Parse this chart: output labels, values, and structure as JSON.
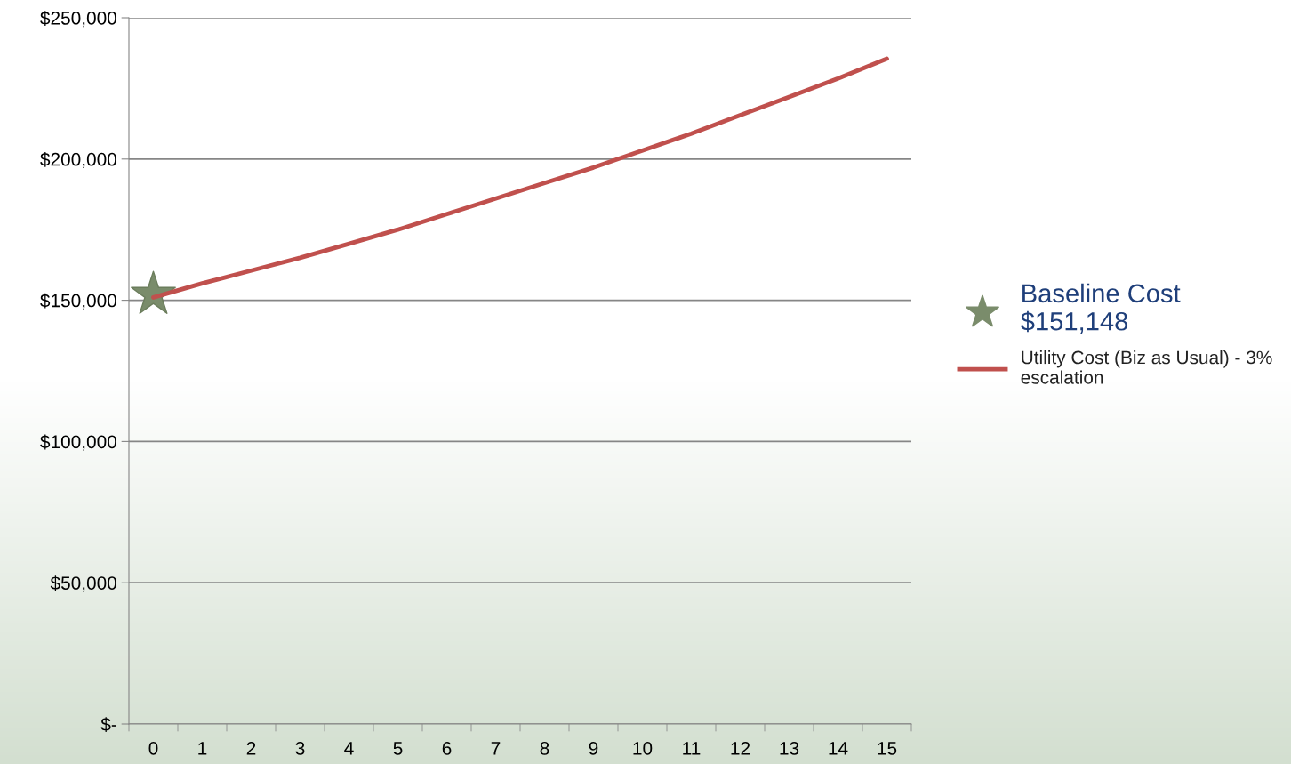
{
  "chart_data": {
    "type": "line",
    "categories": [
      "0",
      "1",
      "2",
      "3",
      "4",
      "5",
      "6",
      "7",
      "8",
      "9",
      "10",
      "11",
      "12",
      "13",
      "14",
      "15"
    ],
    "series": [
      {
        "name": "Utility Cost (Biz as Usual) - 3%\nescalation",
        "color": "#c0504d",
        "values": [
          151000,
          156000,
          160500,
          165000,
          170000,
          175000,
          180500,
          186000,
          191500,
          197000,
          203000,
          209000,
          215500,
          222000,
          228500,
          235500
        ]
      },
      {
        "name": "Baseline Cost\n$151,148",
        "type": "scatter",
        "marker": "star",
        "color": "#7a8c6b",
        "values": [
          152000,
          null,
          null,
          null,
          null,
          null,
          null,
          null,
          null,
          null,
          null,
          null,
          null,
          null,
          null,
          null
        ]
      }
    ],
    "ylim": [
      0,
      250000
    ],
    "yticks": [
      {
        "value": 0,
        "label": "$-"
      },
      {
        "value": 50000,
        "label": "$50,000"
      },
      {
        "value": 100000,
        "label": "$100,000"
      },
      {
        "value": 150000,
        "label": "$150,000"
      },
      {
        "value": 200000,
        "label": "$200,000"
      },
      {
        "value": 250000,
        "label": "$250,000"
      }
    ],
    "grid": "y",
    "legend": "right"
  }
}
